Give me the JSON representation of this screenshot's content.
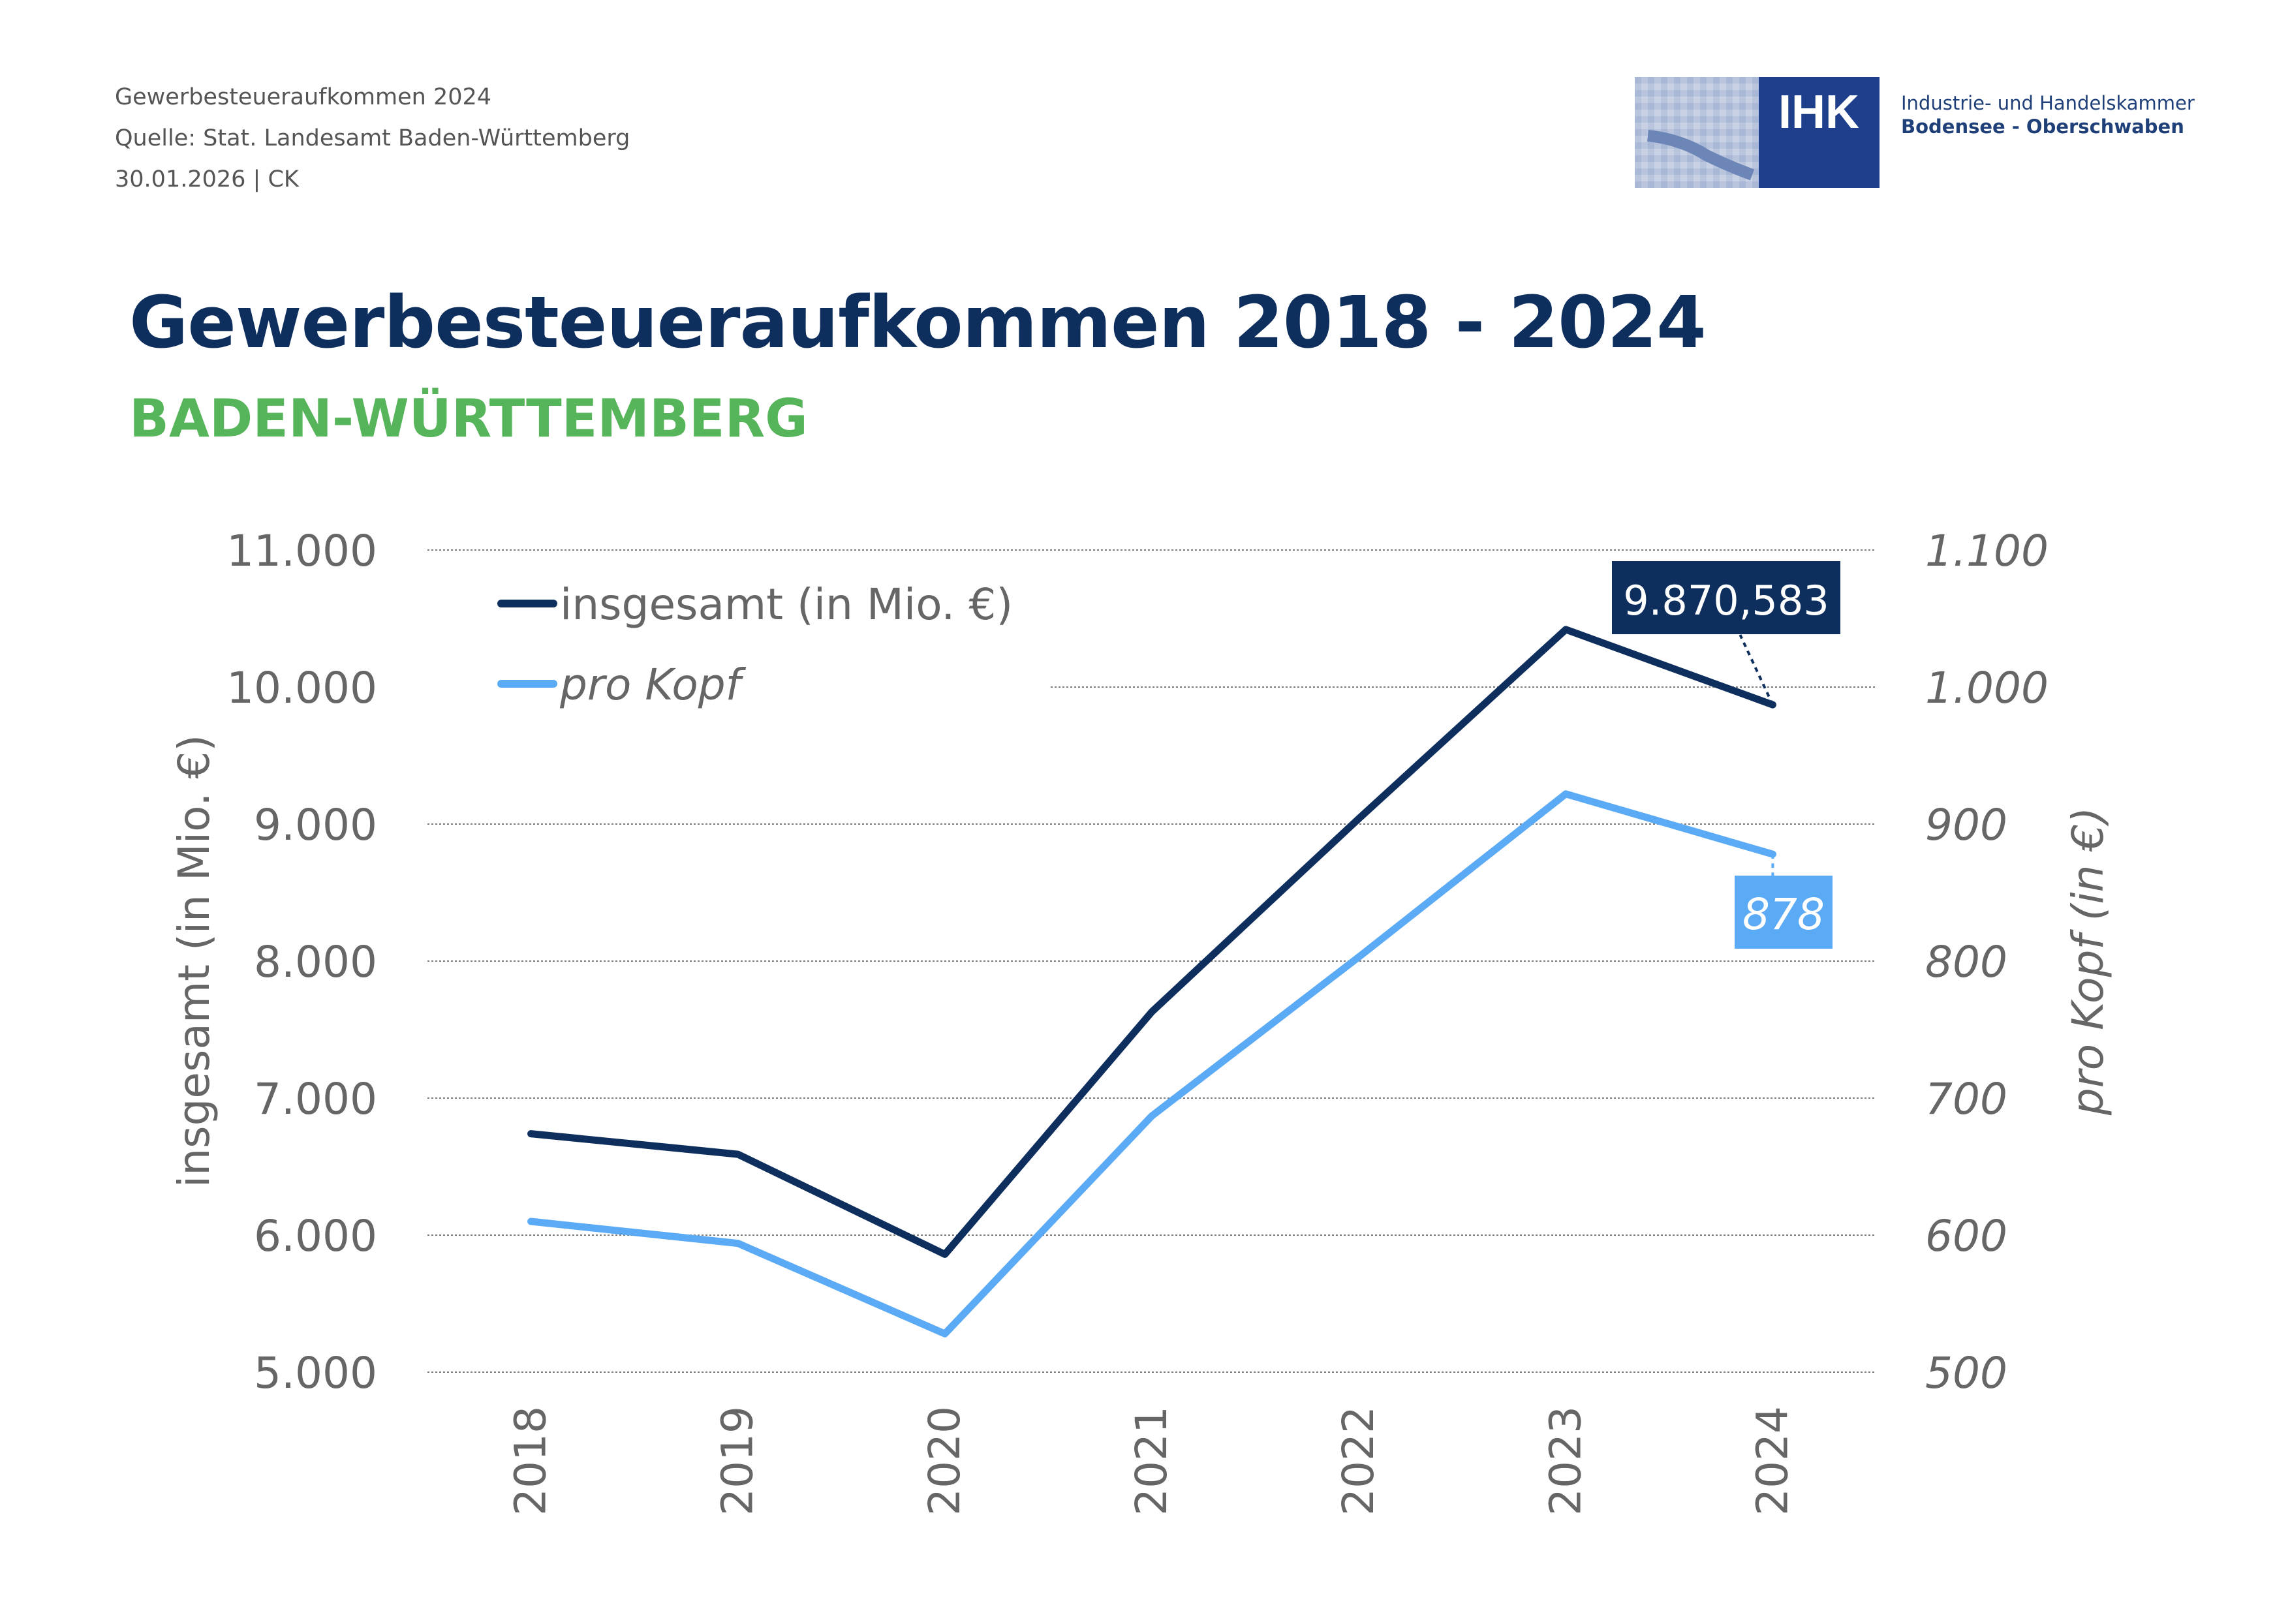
{
  "header": {
    "line1": "Gewerbesteueraufkommen 2024",
    "line2": "Quelle: Stat. Landesamt Baden-Württemberg",
    "line3": "30.01.2026 | CK"
  },
  "logo": {
    "abbr": "IHK",
    "line1": "Industrie- und Handelskammer",
    "line2": "Bodensee - Oberschwaben",
    "brand_color": "#1f3f8c"
  },
  "title": "Gewerbesteueraufkommen 2018 - 2024",
  "subtitle": "BADEN-WÜRTTEMBERG",
  "colors": {
    "title": "#0e2f5e",
    "subtitle": "#56b45a",
    "series_total": "#0e2f5e",
    "series_per_capita": "#5baaf5",
    "axis_text": "#666666"
  },
  "chart_data": {
    "type": "line",
    "categories": [
      "2018",
      "2019",
      "2020",
      "2021",
      "2022",
      "2023",
      "2024"
    ],
    "series": [
      {
        "name": "insgesamt (in Mio. €)",
        "axis": "left",
        "values": [
          6740,
          6590,
          5860,
          7630,
          9040,
          10420,
          9870.583
        ],
        "color": "#0e2f5e",
        "last_label": "9.870,583"
      },
      {
        "name": "pro Kopf",
        "axis": "right",
        "values": [
          610,
          594,
          528,
          687,
          803,
          922,
          878
        ],
        "color": "#5baaf5",
        "last_label": "878"
      }
    ],
    "y_left": {
      "label": "insgesamt (in Mio. €)",
      "min": 5000,
      "max": 11000,
      "ticks": [
        "5.000",
        "6.000",
        "7.000",
        "8.000",
        "9.000",
        "10.000",
        "11.000"
      ]
    },
    "y_right": {
      "label": "pro Kopf (in €)",
      "min": 500,
      "max": 1100,
      "ticks": [
        "500",
        "600",
        "700",
        "800",
        "900",
        "1.000",
        "1.100"
      ]
    },
    "grid": true,
    "legend_position": "top-left"
  }
}
